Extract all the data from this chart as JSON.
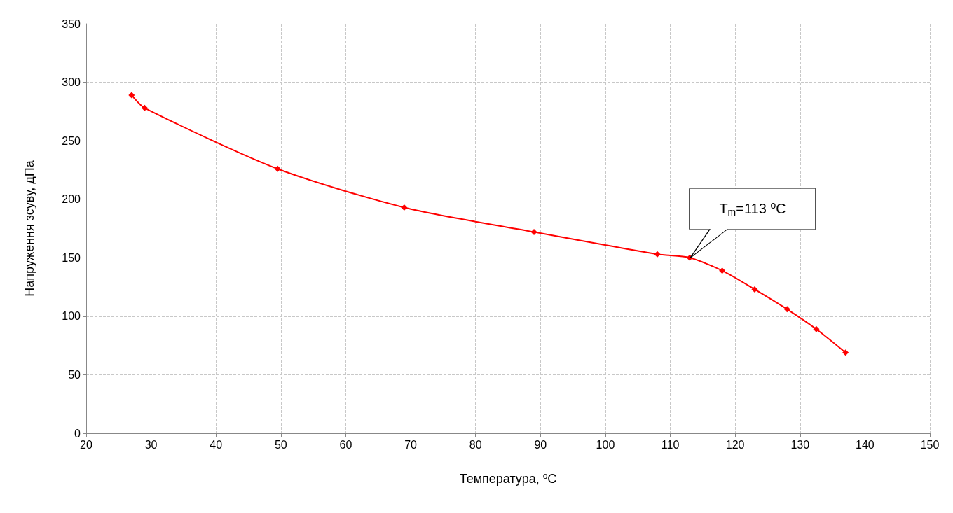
{
  "chart_data": {
    "type": "line",
    "xlabel": "Температура, $^{o}$C",
    "ylabel": "Напруження зсуву, дПа",
    "x": [
      27,
      29,
      49.5,
      69,
      89,
      108,
      113,
      118,
      123,
      128,
      132.5,
      137
    ],
    "series": [
      {
        "color": "#ff0000",
        "values": [
          289,
          278,
          226,
          193,
          172,
          153,
          150,
          139,
          123,
          106,
          89,
          69
        ]
      }
    ],
    "xlim": [
      20,
      150
    ],
    "xticks": [
      20,
      30,
      40,
      50,
      60,
      70,
      80,
      90,
      100,
      110,
      120,
      130,
      140,
      150
    ],
    "ylim": [
      0,
      350
    ],
    "yticks": [
      0,
      50,
      100,
      150,
      200,
      250,
      300,
      350
    ],
    "grid": true,
    "marker": "diamond",
    "line_style": "solid",
    "annotations": [
      "T$_{m}$=113 $^{o}$C"
    ]
  }
}
